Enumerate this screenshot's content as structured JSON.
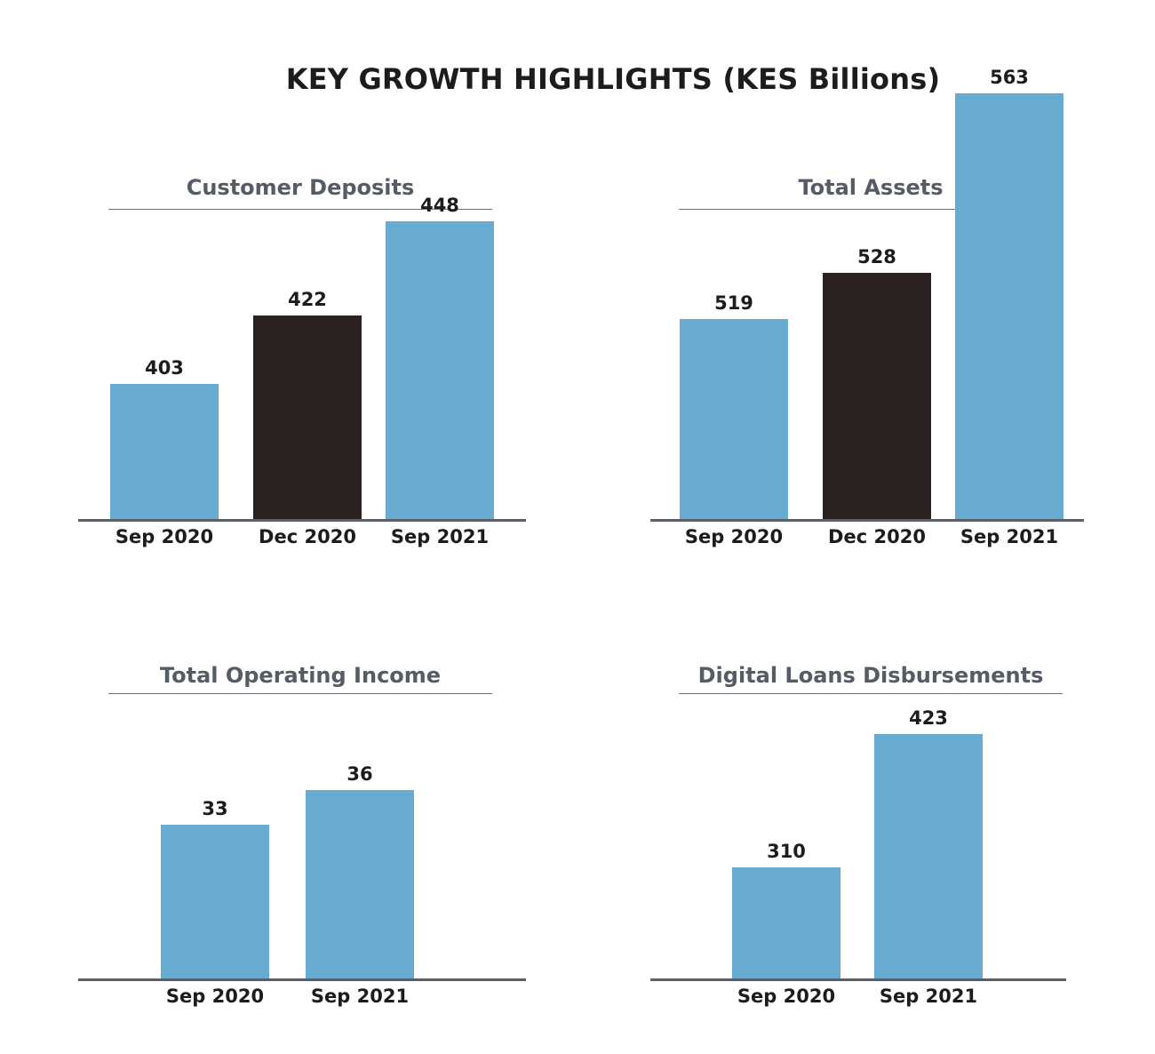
{
  "title": "KEY GROWTH HIGHLIGHTS (KES Billions)",
  "colors": {
    "highlight": "#67acd0",
    "dark": "#2a2120"
  },
  "chart_data": [
    {
      "type": "bar",
      "title": "Customer Deposits",
      "categories": [
        "Sep 2020",
        "Dec 2020",
        "Sep 2021"
      ],
      "values": [
        403,
        422,
        448
      ],
      "bar_colors": [
        "#67acd0",
        "#2a2120",
        "#67acd0"
      ]
    },
    {
      "type": "bar",
      "title": "Total Assets",
      "categories": [
        "Sep 2020",
        "Dec 2020",
        "Sep 2021"
      ],
      "values": [
        519,
        528,
        563
      ],
      "bar_colors": [
        "#67acd0",
        "#2a2120",
        "#67acd0"
      ]
    },
    {
      "type": "bar",
      "title": "Total Operating Income",
      "categories": [
        "Sep 2020",
        "Sep 2021"
      ],
      "values": [
        33,
        36
      ],
      "bar_colors": [
        "#67acd0",
        "#67acd0"
      ]
    },
    {
      "type": "bar",
      "title": "Digital Loans Disbursements",
      "categories": [
        "Sep 2020",
        "Sep 2021"
      ],
      "values": [
        310,
        423
      ],
      "bar_colors": [
        "#67acd0",
        "#67acd0"
      ]
    }
  ]
}
